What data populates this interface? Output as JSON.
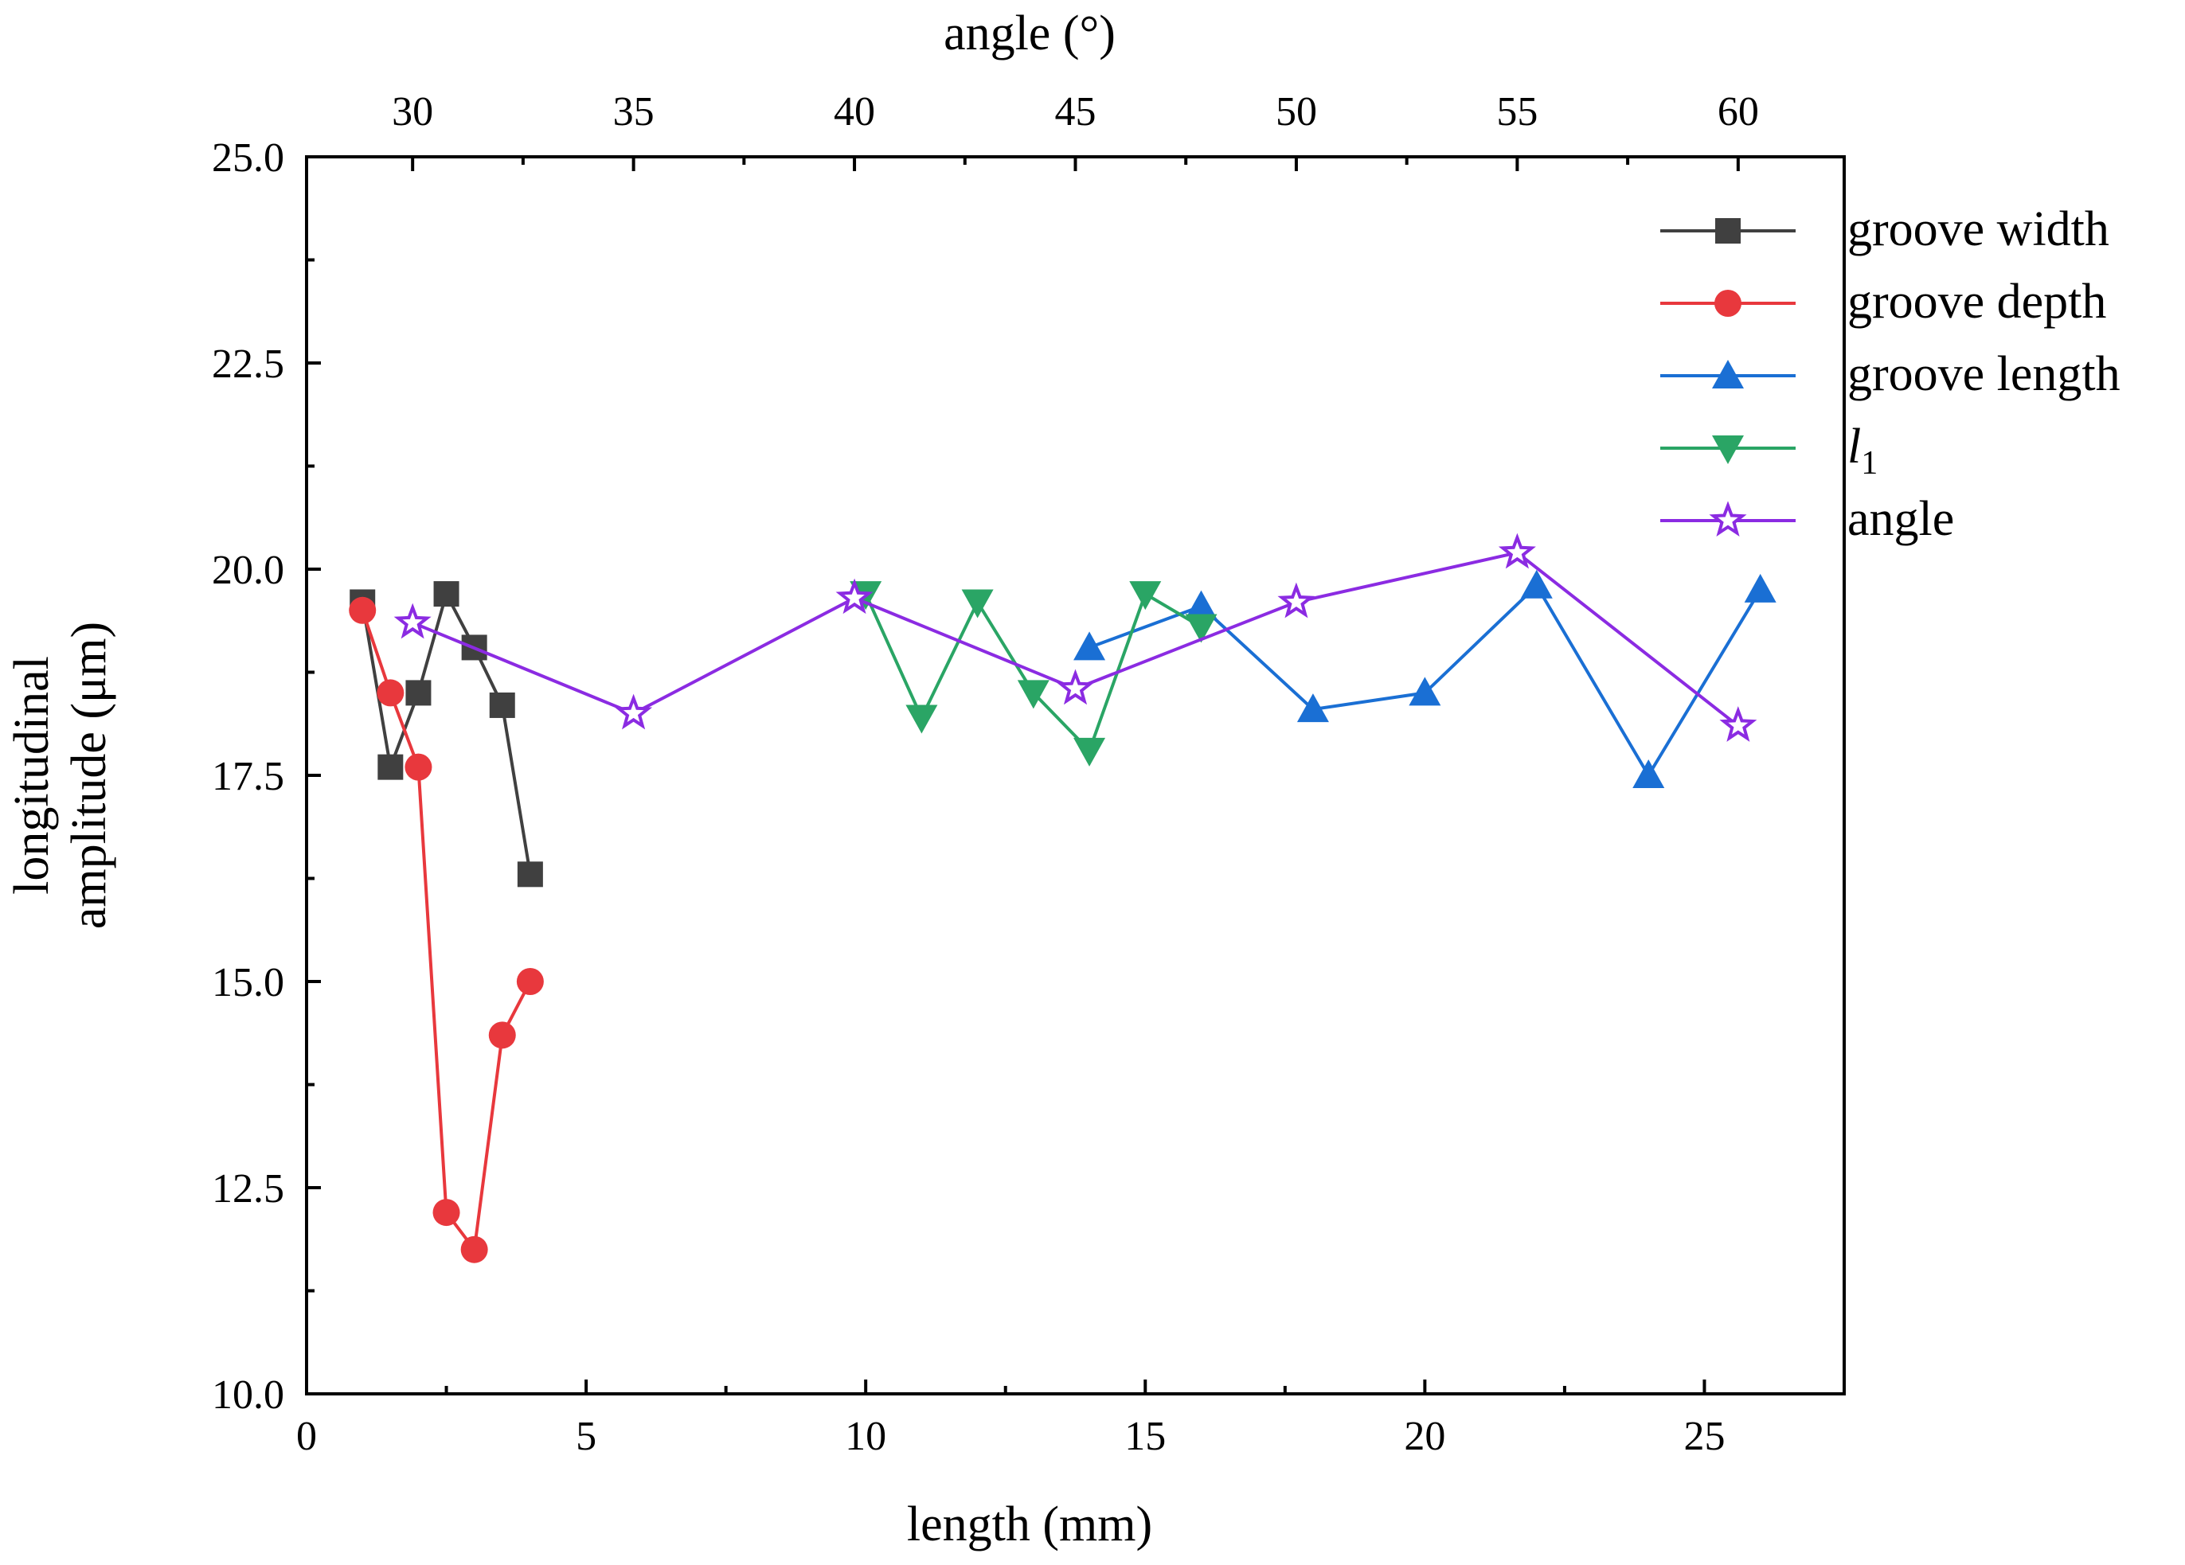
{
  "chart_data": {
    "type": "line",
    "title": "",
    "xlabel": "length (mm)",
    "ylabel": [
      "longitudinal",
      "amplitude (μm)"
    ],
    "x2label": "angle (°)",
    "xlim": [
      0,
      27.5
    ],
    "ylim": [
      10.0,
      25.0
    ],
    "x2lim": [
      27.6,
      62.4
    ],
    "xticks": [
      0,
      5,
      10,
      15,
      20,
      25
    ],
    "xtick_labels": [
      "0",
      "5",
      "10",
      "15",
      "20",
      "25"
    ],
    "yticks": [
      10.0,
      12.5,
      15.0,
      17.5,
      20.0,
      22.5,
      25.0
    ],
    "ytick_labels": [
      "10.0",
      "12.5",
      "15.0",
      "17.5",
      "20.0",
      "22.5",
      "25.0"
    ],
    "x2ticks": [
      30,
      35,
      40,
      45,
      50,
      55,
      60
    ],
    "x2tick_labels": [
      "30",
      "35",
      "40",
      "45",
      "50",
      "55",
      "60"
    ],
    "legend_position": "top-right",
    "grid": false,
    "series": [
      {
        "name": "groove width",
        "color": "#404040",
        "marker": "square",
        "axis": "bottom",
        "x": [
          1.0,
          1.5,
          2.0,
          2.5,
          3.0,
          3.5,
          4.0
        ],
        "y": [
          19.6,
          17.6,
          18.5,
          19.7,
          19.05,
          18.35,
          16.3
        ]
      },
      {
        "name": "groove depth",
        "color": "#e8383d",
        "marker": "circle",
        "axis": "bottom",
        "x": [
          1.0,
          1.5,
          2.0,
          2.5,
          3.0,
          3.5,
          4.0
        ],
        "y": [
          19.5,
          18.5,
          17.6,
          12.2,
          11.75,
          14.35,
          15.0
        ]
      },
      {
        "name": "groove length",
        "color": "#1a6fd4",
        "marker": "triangle-up",
        "axis": "bottom",
        "x": [
          14,
          16,
          18,
          20,
          22,
          24,
          26
        ],
        "y": [
          19.05,
          19.55,
          18.3,
          18.5,
          19.8,
          17.5,
          19.75
        ]
      },
      {
        "name": "l1",
        "label_main": "l",
        "label_sub": "1",
        "color": "#2aa565",
        "marker": "triangle-down",
        "axis": "bottom",
        "x": [
          10,
          11,
          12,
          13,
          14,
          15,
          16
        ],
        "y": [
          19.7,
          18.2,
          19.6,
          18.5,
          17.8,
          19.7,
          19.3
        ]
      },
      {
        "name": "angle",
        "color": "#8b2be2",
        "marker": "star",
        "axis": "top",
        "x": [
          30,
          35,
          40,
          45,
          50,
          55,
          60
        ],
        "y": [
          19.35,
          18.25,
          19.65,
          18.55,
          19.6,
          20.2,
          18.1
        ]
      }
    ]
  }
}
